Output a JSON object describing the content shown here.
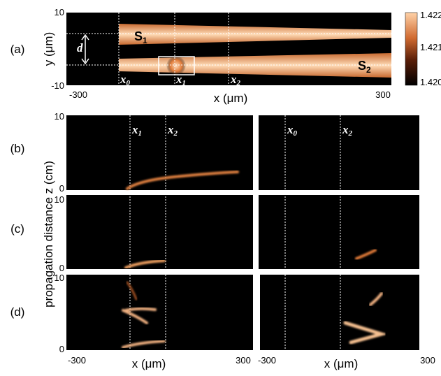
{
  "panel_labels": [
    "(a)",
    "(b)",
    "(c)",
    "(d)"
  ],
  "panel_a": {
    "y_label": "y (μm)",
    "x_label": "x (μm)",
    "y_ticks": [
      "10",
      "-10"
    ],
    "x_ticks": [
      "-300",
      "300"
    ],
    "colorbar_ticks": [
      "1.422",
      "1.421",
      "1.420"
    ],
    "d": "d",
    "s1": {
      "main": "S",
      "sub": "1"
    },
    "s2": {
      "main": "S",
      "sub": "2"
    },
    "markers": [
      {
        "main": "x",
        "sub": "0"
      },
      {
        "main": "x",
        "sub": "1"
      },
      {
        "main": "x",
        "sub": "2"
      }
    ]
  },
  "panels_bcd": {
    "y_label": "propagation distance z (cm)",
    "z_ticks": [
      "10",
      "0"
    ],
    "x_label": "x (μm)",
    "x_ticks": [
      "-300",
      "300"
    ],
    "left_markers": [
      {
        "main": "x",
        "sub": "1"
      },
      {
        "main": "x",
        "sub": "2"
      }
    ],
    "right_markers": [
      {
        "main": "x",
        "sub": "0"
      },
      {
        "main": "x",
        "sub": "2"
      }
    ]
  }
}
